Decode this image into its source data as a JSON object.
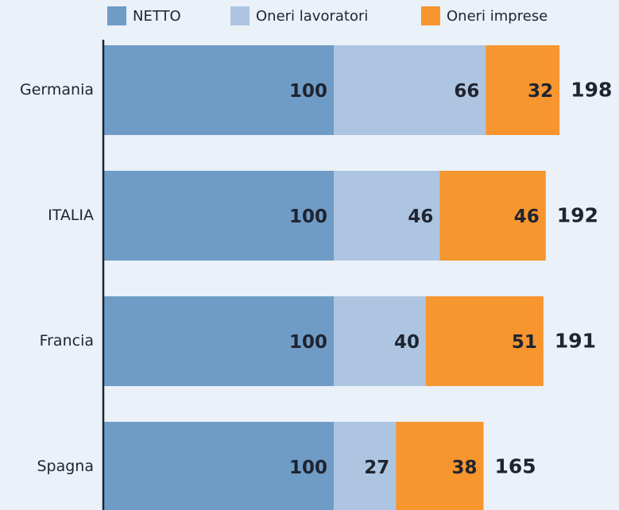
{
  "chart_data": {
    "type": "stacked-bar-horizontal",
    "categories": [
      "Germania",
      "ITALIA",
      "Francia",
      "Spagna"
    ],
    "series": [
      {
        "name": "NETTO",
        "color": "#6f9cc6",
        "values": [
          100,
          100,
          100,
          100
        ]
      },
      {
        "name": "Oneri lavoratori",
        "color": "#adc5e0",
        "values": [
          66,
          46,
          40,
          27
        ]
      },
      {
        "name": "Oneri imprese",
        "color": "#f7952f",
        "values": [
          32,
          46,
          51,
          38
        ]
      }
    ],
    "totals": [
      198,
      192,
      191,
      165
    ],
    "xlim": [
      0,
      220
    ]
  }
}
